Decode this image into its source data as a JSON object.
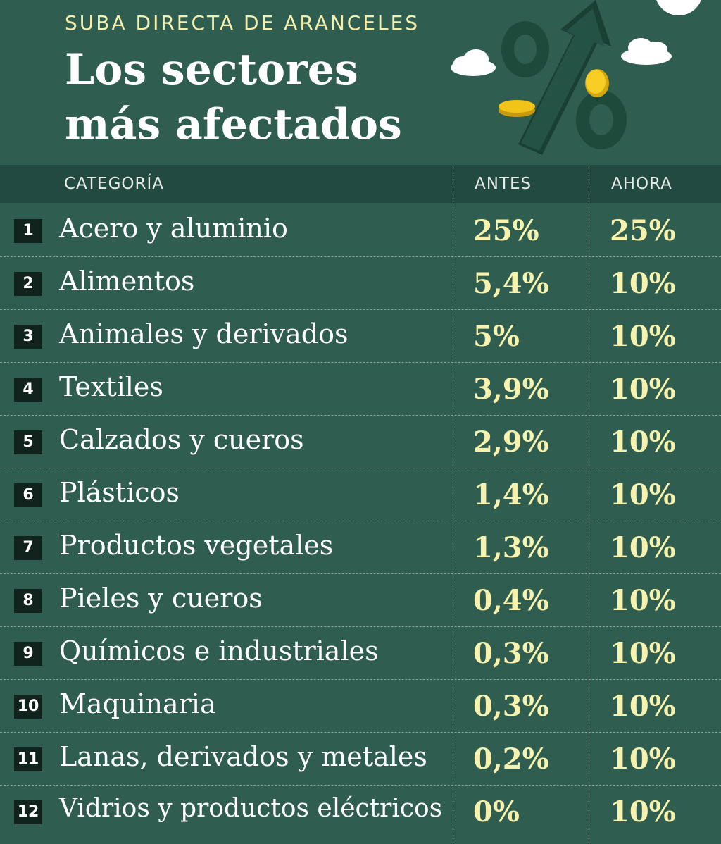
{
  "header": {
    "kicker": "SUBA DIRECTA DE ARANCELES",
    "title": "Los sectores más afectados"
  },
  "colors": {
    "background": "#2f5e51",
    "header_band": "#234a40",
    "accent_yellow": "#f7f2ad",
    "rank_box": "#10241d"
  },
  "illustration": {
    "icons": [
      "percent-sign-icon",
      "up-arrow-icon",
      "coin-icon",
      "cloud-icon"
    ],
    "symbol": "%"
  },
  "table": {
    "columns": [
      "CATEGORÍA",
      "ANTES",
      "AHORA"
    ],
    "rows": [
      {
        "rank": "1",
        "category": "Acero y aluminio",
        "antes": "25%",
        "ahora": "25%"
      },
      {
        "rank": "2",
        "category": "Alimentos",
        "antes": "5,4%",
        "ahora": "10%"
      },
      {
        "rank": "3",
        "category": "Animales y derivados",
        "antes": "5%",
        "ahora": "10%"
      },
      {
        "rank": "4",
        "category": "Textiles",
        "antes": "3,9%",
        "ahora": "10%"
      },
      {
        "rank": "5",
        "category": "Calzados y cueros",
        "antes": "2,9%",
        "ahora": "10%"
      },
      {
        "rank": "6",
        "category": "Plásticos",
        "antes": "1,4%",
        "ahora": "10%"
      },
      {
        "rank": "7",
        "category": "Productos vegetales",
        "antes": "1,3%",
        "ahora": "10%"
      },
      {
        "rank": "8",
        "category": "Pieles y cueros",
        "antes": "0,4%",
        "ahora": "10%"
      },
      {
        "rank": "9",
        "category": "Químicos e industriales",
        "antes": "0,3%",
        "ahora": "10%"
      },
      {
        "rank": "10",
        "category": "Maquinaria",
        "antes": "0,3%",
        "ahora": "10%"
      },
      {
        "rank": "11",
        "category": "Lanas, derivados y metales",
        "antes": "0,2%",
        "ahora": "10%"
      },
      {
        "rank": "12",
        "category": "Vidrios y productos eléctricos",
        "antes": "0%",
        "ahora": "10%"
      }
    ]
  }
}
